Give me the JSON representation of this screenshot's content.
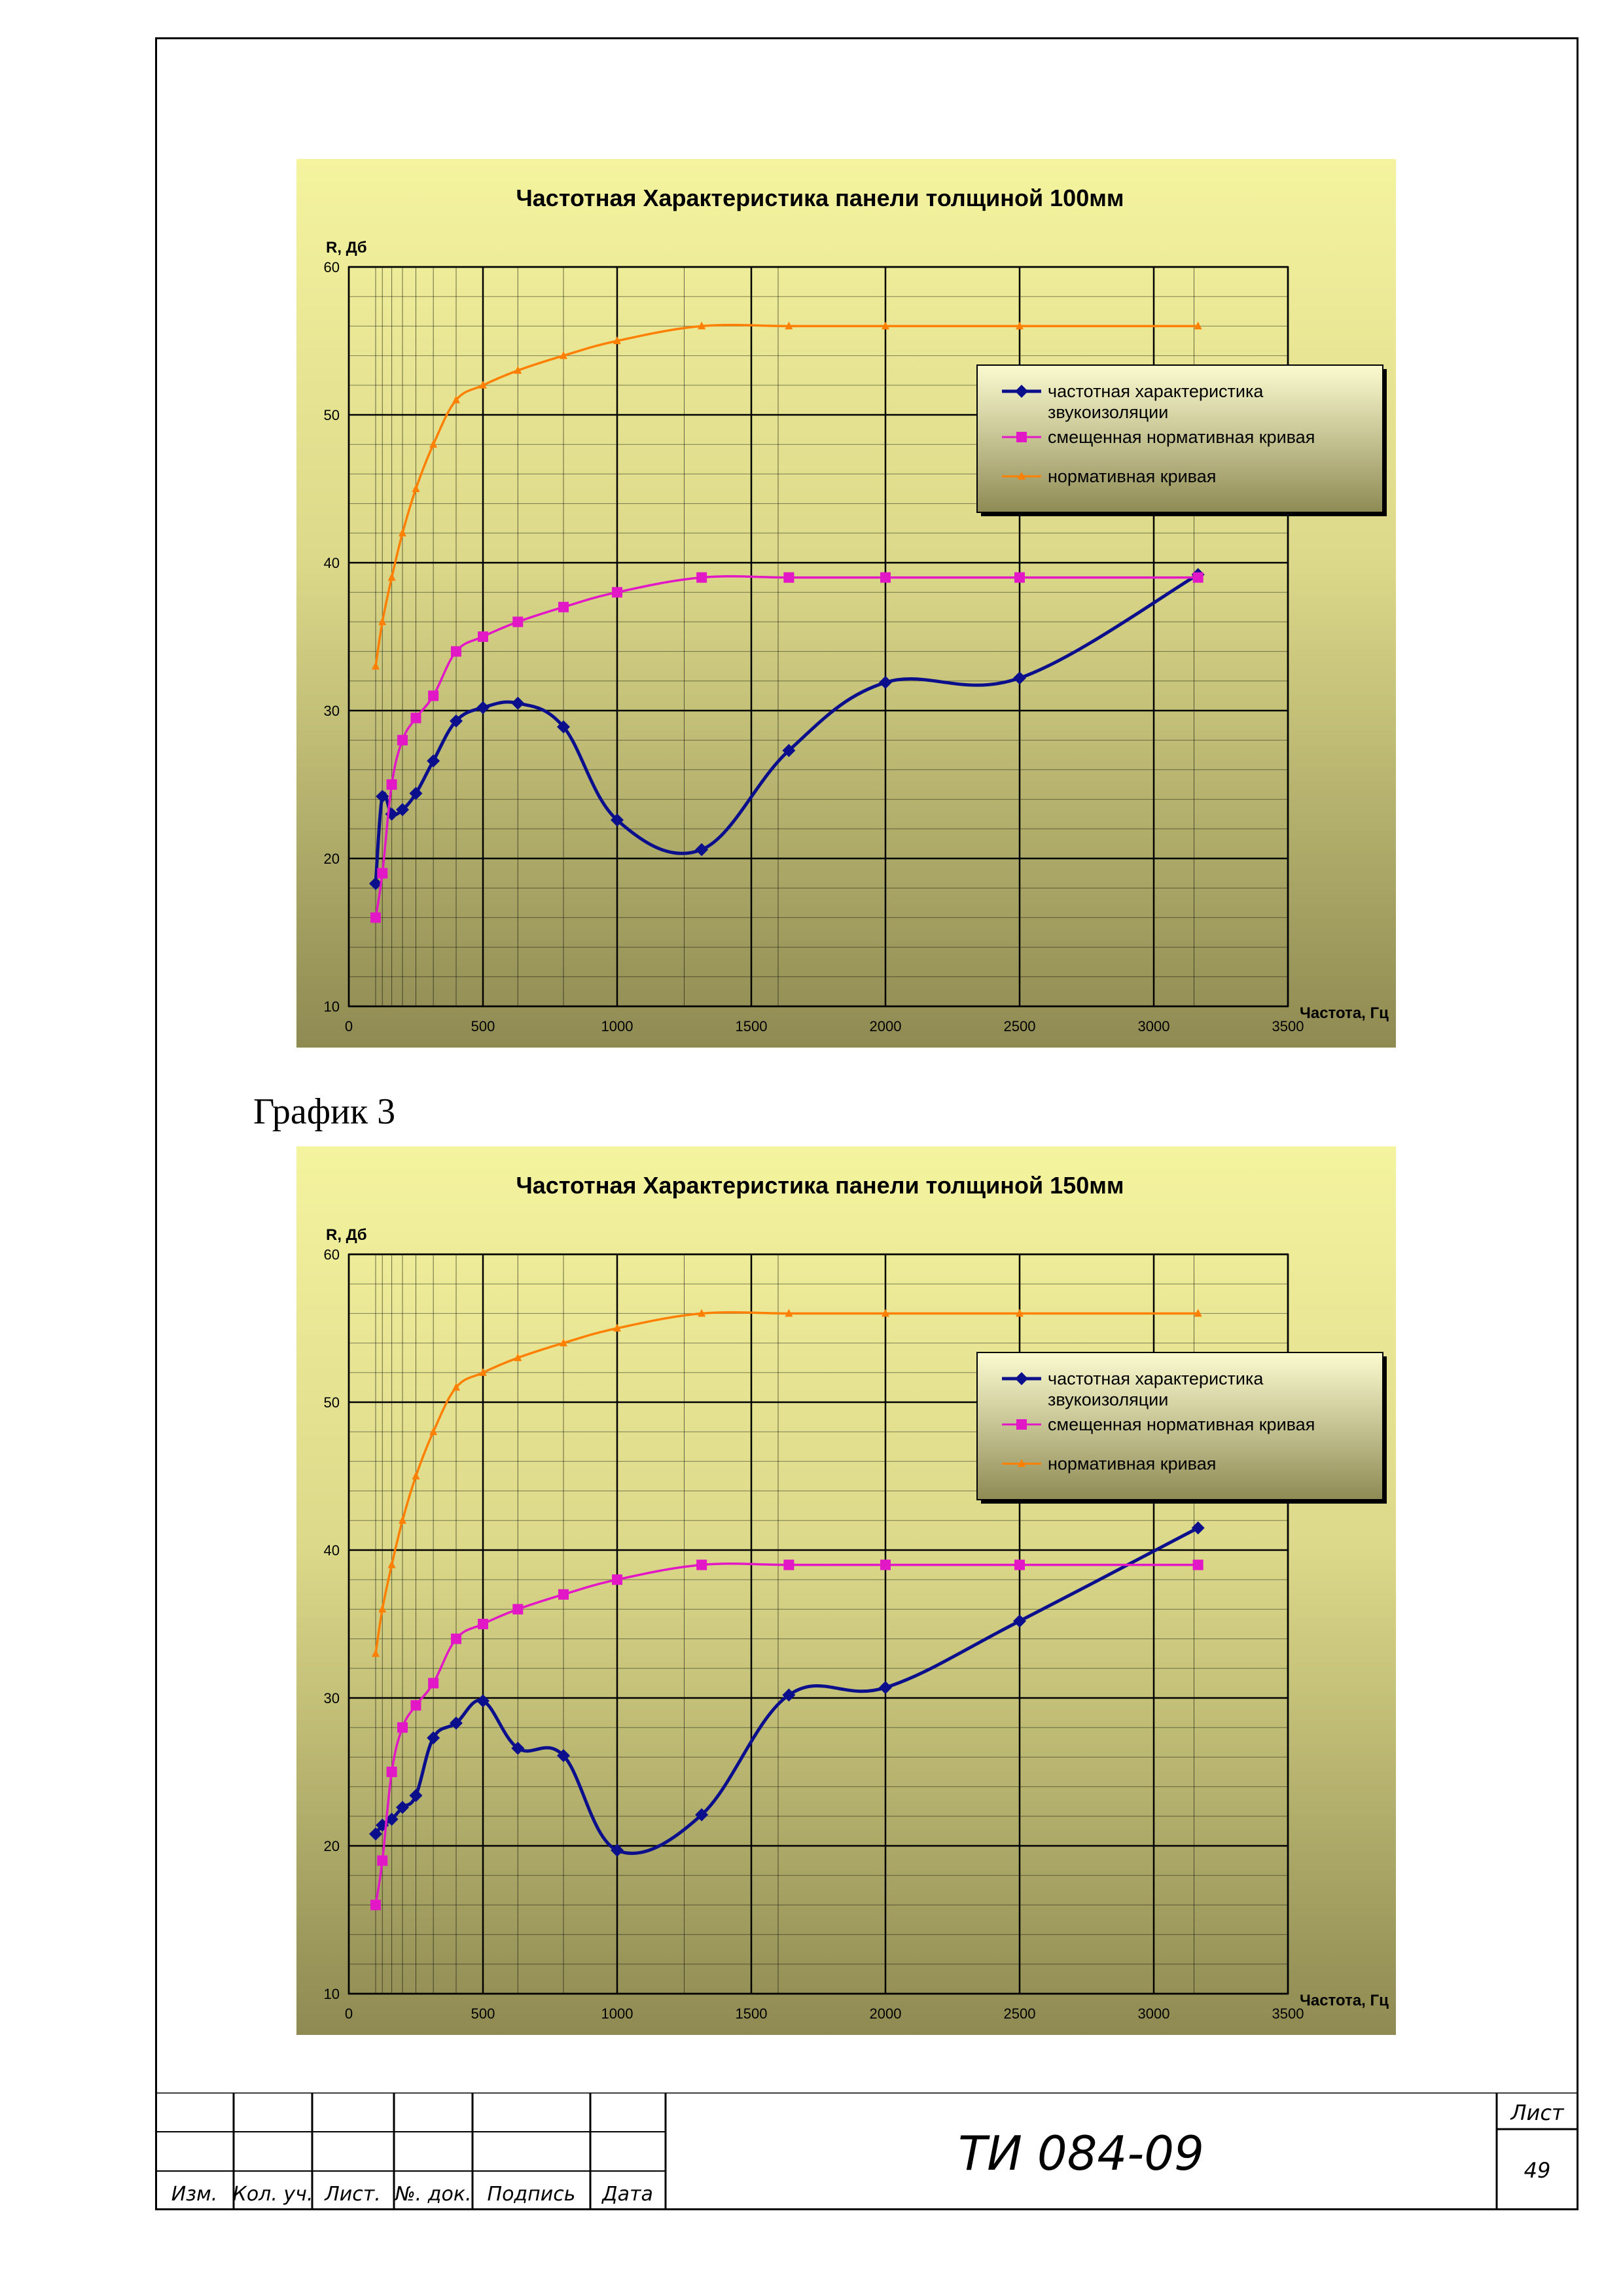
{
  "caption": "График 3",
  "legend": [
    "частотная характеристика звукоизоляции",
    "смещенная нормативная кривая",
    "нормативная кривая"
  ],
  "colors": {
    "series1": "#0b0f8c",
    "series2": "#e218c6",
    "series3": "#ff7f00",
    "plot_bg_top": "#f4f39e",
    "plot_bg_bottom": "#8e8a52"
  },
  "stamp": {
    "headers": [
      "Изм.",
      "Кол. уч.",
      "Лист.",
      "№. док.",
      "Подпись",
      "Дата"
    ],
    "doc_code": "ТИ 084-09",
    "sheet_label": "Лист",
    "sheet_number": "49"
  },
  "chart_data": [
    {
      "type": "line",
      "title": "Частотная Характеристика панели толщиной 100мм",
      "ylabel": "R, Дб",
      "xlabel": "Частота, Гц",
      "xlim": [
        0,
        3500
      ],
      "ylim": [
        10,
        60
      ],
      "xticks": [
        "0",
        "500",
        "1000",
        "1500",
        "2000",
        "2500",
        "3000",
        "3500"
      ],
      "yticks": [
        "10",
        "20",
        "30",
        "40",
        "50",
        "60"
      ],
      "grid": true,
      "legend_position": "right",
      "series": [
        {
          "name": "частотная характеристика звукоизоляции",
          "marker": "diamond",
          "x": [
            100,
            125,
            160,
            200,
            250,
            315,
            400,
            500,
            630,
            800,
            1000,
            1315,
            1640,
            2000,
            2500,
            3165
          ],
          "y": [
            18.3,
            24.2,
            23.0,
            23.3,
            24.4,
            26.6,
            29.3,
            30.2,
            30.5,
            28.9,
            22.6,
            20.6,
            27.3,
            31.9,
            32.2,
            39.2
          ]
        },
        {
          "name": "смещенная нормативная кривая",
          "marker": "square",
          "x": [
            100,
            125,
            160,
            200,
            250,
            315,
            400,
            500,
            630,
            800,
            1000,
            1315,
            1640,
            2000,
            2500,
            3165
          ],
          "y": [
            16,
            19,
            25,
            28,
            29.5,
            31,
            34,
            35,
            36,
            37,
            38,
            39,
            39,
            39,
            39,
            39
          ]
        },
        {
          "name": "нормативная кривая",
          "marker": "triangle",
          "x": [
            100,
            125,
            160,
            200,
            250,
            315,
            400,
            500,
            630,
            800,
            1000,
            1315,
            1640,
            2000,
            2500,
            3165
          ],
          "y": [
            33,
            36,
            39,
            42,
            45,
            48,
            51,
            52,
            53,
            54,
            55,
            56,
            56,
            56,
            56,
            56
          ]
        }
      ]
    },
    {
      "type": "line",
      "title": "Частотная Характеристика панели толщиной 150мм",
      "ylabel": "R, Дб",
      "xlabel": "Частота, Гц",
      "xlim": [
        0,
        3500
      ],
      "ylim": [
        10,
        60
      ],
      "xticks": [
        "0",
        "500",
        "1000",
        "1500",
        "2000",
        "2500",
        "3000",
        "3500"
      ],
      "yticks": [
        "10",
        "20",
        "30",
        "40",
        "50",
        "60"
      ],
      "grid": true,
      "legend_position": "right",
      "series": [
        {
          "name": "частотная характеристика звукоизоляции",
          "marker": "diamond",
          "x": [
            100,
            125,
            160,
            200,
            250,
            315,
            400,
            500,
            630,
            800,
            1000,
            1315,
            1640,
            2000,
            2500,
            3165
          ],
          "y": [
            20.8,
            21.4,
            21.8,
            22.6,
            23.4,
            27.3,
            28.3,
            29.8,
            26.6,
            26.1,
            19.7,
            22.1,
            30.2,
            30.7,
            35.2,
            41.5
          ]
        },
        {
          "name": "смещенная нормативная кривая",
          "marker": "square",
          "x": [
            100,
            125,
            160,
            200,
            250,
            315,
            400,
            500,
            630,
            800,
            1000,
            1315,
            1640,
            2000,
            2500,
            3165
          ],
          "y": [
            16,
            19,
            25,
            28,
            29.5,
            31,
            34,
            35,
            36,
            37,
            38,
            39,
            39,
            39,
            39,
            39
          ]
        },
        {
          "name": "нормативная кривая",
          "marker": "triangle",
          "x": [
            100,
            125,
            160,
            200,
            250,
            315,
            400,
            500,
            630,
            800,
            1000,
            1315,
            1640,
            2000,
            2500,
            3165
          ],
          "y": [
            33,
            36,
            39,
            42,
            45,
            48,
            51,
            52,
            53,
            54,
            55,
            56,
            56,
            56,
            56,
            56
          ]
        }
      ]
    }
  ]
}
